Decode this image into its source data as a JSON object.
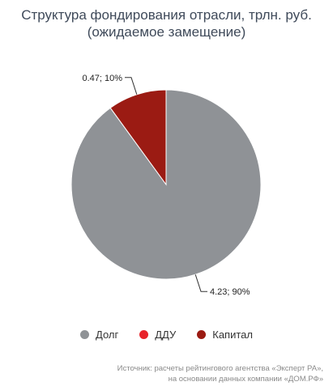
{
  "chart_data": {
    "type": "pie",
    "title_lines": [
      "Структура фондирования отрасли, трлн. руб.",
      "(ожидаемое замещение)"
    ],
    "slices": [
      {
        "name": "Долг",
        "value": 4.23,
        "percent": 90,
        "label": "4.23; 90%",
        "color": "#8f9296"
      },
      {
        "name": "ДДУ",
        "value": 0,
        "percent": 0,
        "label": "",
        "color": "#e8242b"
      },
      {
        "name": "Капитал",
        "value": 0.47,
        "percent": 10,
        "label": "0.47; 10%",
        "color": "#9b1b13"
      }
    ],
    "legend_position": "bottom"
  },
  "source": {
    "line1": "Источник: расчеты рейтингового агентства «Эксперт РА»,",
    "line2": "на основании данных компании «ДОМ.РФ»"
  }
}
